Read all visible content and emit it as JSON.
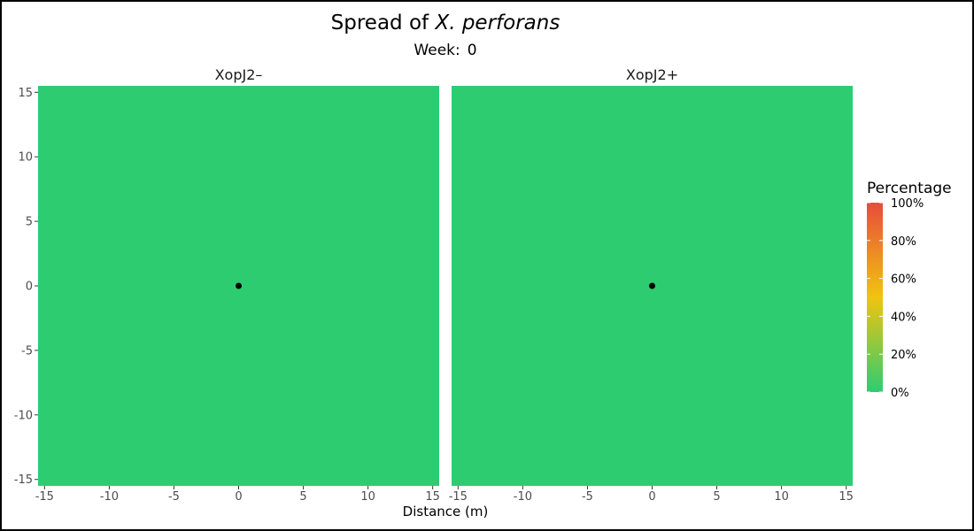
{
  "chart_data": {
    "type": "heatmap",
    "title_prefix": "Spread of ",
    "title_species": "X. perforans",
    "subtitle_label": "Week:",
    "subtitle_value": "0",
    "xlabel": "Distance (m)",
    "ylabel": "",
    "xlim": [
      -15.5,
      15.5
    ],
    "ylim": [
      -15.5,
      15.5
    ],
    "x_ticks": [
      -15,
      -10,
      -5,
      0,
      5,
      10,
      15
    ],
    "y_ticks": [
      -15,
      -10,
      -5,
      0,
      5,
      10,
      15
    ],
    "panels": [
      {
        "label": "XopJ2–",
        "percentage": 0,
        "source_point": [
          0,
          0
        ]
      },
      {
        "label": "XopJ2+",
        "percentage": 0,
        "source_point": [
          0,
          0
        ]
      }
    ],
    "legend": {
      "title": "Percentage",
      "placement": "right",
      "ticks": [
        "100%",
        "80%",
        "60%",
        "40%",
        "20%",
        "0%"
      ],
      "tick_values": [
        100,
        80,
        60,
        40,
        20,
        0
      ],
      "colors": [
        "#2ecc71",
        "#f1c40f",
        "#e74c3c"
      ]
    },
    "grid": false
  }
}
